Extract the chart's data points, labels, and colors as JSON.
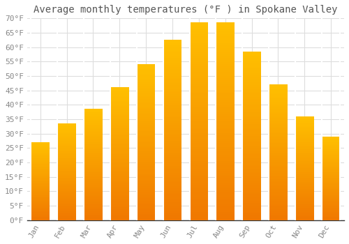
{
  "title": "Average monthly temperatures (°F ) in Spokane Valley",
  "months": [
    "Jan",
    "Feb",
    "Mar",
    "Apr",
    "May",
    "Jun",
    "Jul",
    "Aug",
    "Sep",
    "Oct",
    "Nov",
    "Dec"
  ],
  "values": [
    27,
    33.5,
    38.5,
    46,
    54,
    62.5,
    68.5,
    68.5,
    58.5,
    47,
    36,
    29
  ],
  "bar_color_top": "#FFB700",
  "bar_color_bottom": "#F07800",
  "background_color": "#ffffff",
  "grid_color": "#dddddd",
  "ylim": [
    0,
    70
  ],
  "yticks": [
    0,
    5,
    10,
    15,
    20,
    25,
    30,
    35,
    40,
    45,
    50,
    55,
    60,
    65,
    70
  ],
  "title_fontsize": 10,
  "tick_fontsize": 8,
  "font_family": "monospace",
  "title_color": "#555555",
  "tick_color": "#888888"
}
